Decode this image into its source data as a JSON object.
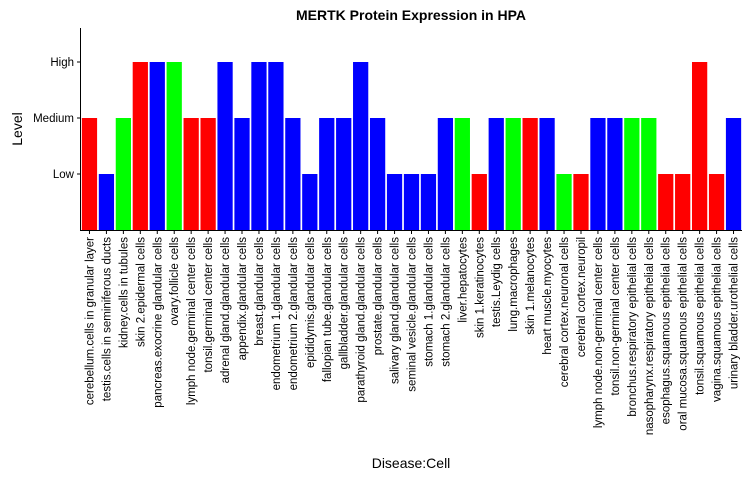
{
  "chart_data": {
    "type": "bar",
    "title": "MERTK Protein Expression in HPA",
    "xlabel": "Disease:Cell",
    "ylabel": "Level",
    "y_levels": [
      "Low",
      "Medium",
      "High"
    ],
    "ylim": [
      0,
      3.2
    ],
    "grid": false,
    "legend": "none",
    "colors": {
      "red": "#ff0000",
      "blue": "#0000ff",
      "green": "#00ff00"
    },
    "categories": [
      "cerebellum.cells in granular layer",
      "testis.cells in seminiferous ducts",
      "kidney.cells in tubules",
      "skin 2.epidermal cells",
      "pancreas.exocrine glandular cells",
      "ovary.follicle cells",
      "lymph node.germinal center cells",
      "tonsil.germinal center cells",
      "adrenal gland.glandular cells",
      "appendix.glandular cells",
      "breast.glandular cells",
      "endometrium 1.glandular cells",
      "endometrium 2.glandular cells",
      "epididymis.glandular cells",
      "fallopian tube.glandular cells",
      "gallbladder.glandular cells",
      "parathyroid gland.glandular cells",
      "prostate.glandular cells",
      "salivary gland.glandular cells",
      "seminal vesicle.glandular cells",
      "stomach 1.glandular cells",
      "stomach 2.glandular cells",
      "liver.hepatocytes",
      "skin 1.keratinocytes",
      "testis.Leydig cells",
      "lung.macrophages",
      "skin 1.melanocytes",
      "heart muscle.myocytes",
      "cerebral cortex.neuronal cells",
      "cerebral cortex.neuropil",
      "lymph node.non-germinal center cells",
      "tonsil.non-germinal center cells",
      "bronchus.respiratory epithelial cells",
      "nasopharynx.respiratory epithelial cells",
      "esophagus.squamous epithelial cells",
      "oral mucosa.squamous epithelial cells",
      "tonsil.squamous epithelial cells",
      "vagina.squamous epithelial cells",
      "urinary bladder.urothelial cells"
    ],
    "values": [
      2,
      1,
      2,
      3,
      3,
      3,
      2,
      2,
      3,
      2,
      3,
      3,
      2,
      1,
      2,
      2,
      3,
      2,
      1,
      1,
      1,
      2,
      2,
      1,
      2,
      2,
      2,
      2,
      1,
      1,
      2,
      2,
      2,
      2,
      1,
      1,
      3,
      1,
      2
    ],
    "bar_colors": [
      "red",
      "blue",
      "green",
      "red",
      "blue",
      "green",
      "red",
      "red",
      "blue",
      "blue",
      "blue",
      "blue",
      "blue",
      "blue",
      "blue",
      "blue",
      "blue",
      "blue",
      "blue",
      "blue",
      "blue",
      "blue",
      "green",
      "red",
      "blue",
      "green",
      "red",
      "blue",
      "green",
      "red",
      "blue",
      "blue",
      "green",
      "green",
      "red",
      "red",
      "red",
      "red",
      "blue"
    ]
  }
}
